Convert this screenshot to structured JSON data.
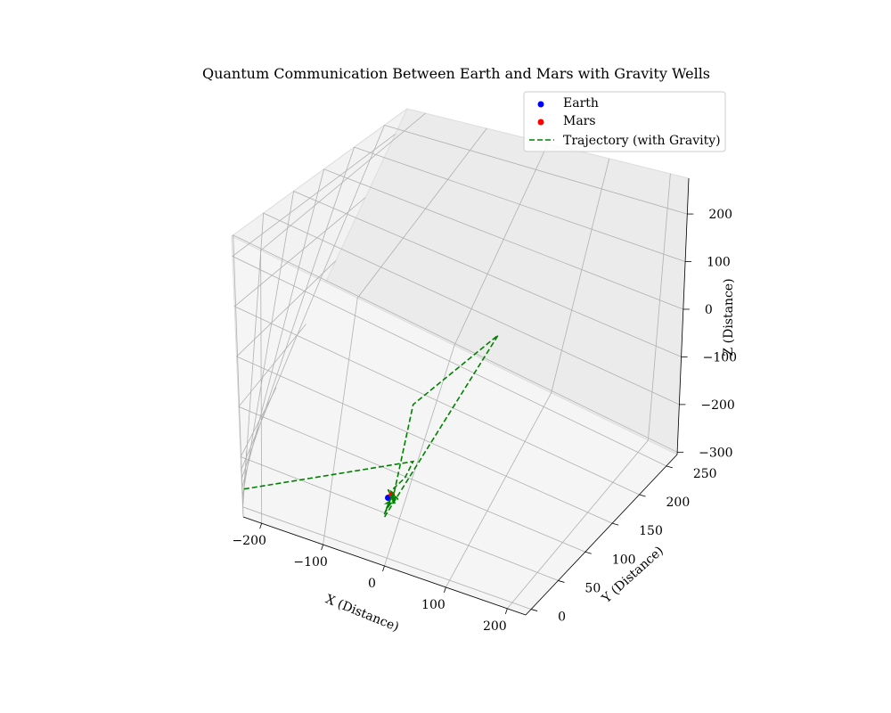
{
  "chart_data": {
    "type": "scatter3d",
    "title": "Quantum Communication Between Earth and Mars with Gravity Wells",
    "xlabel": "X (Distance)",
    "ylabel": "Y (Distance)",
    "zlabel": "Z (Distance)",
    "xlim": [
      -230,
      230
    ],
    "ylim": [
      -10,
      270
    ],
    "zlim": [
      -305,
      275
    ],
    "xticks": [
      "−200",
      "−100",
      "0",
      "100",
      "200"
    ],
    "xtick_values": [
      -200,
      -100,
      0,
      100,
      200
    ],
    "yticks": [
      "0",
      "50",
      "100",
      "150",
      "200",
      "250"
    ],
    "ytick_values": [
      0,
      50,
      100,
      150,
      200,
      250
    ],
    "zticks": [
      "200",
      "100",
      "0",
      "−100",
      "−200",
      "−300"
    ],
    "ztick_values": [
      200,
      100,
      0,
      -100,
      -200,
      -300
    ],
    "grid": true,
    "legend_position": "top-right",
    "series": [
      {
        "name": "Earth",
        "kind": "scatter",
        "color": "#0000ff",
        "points": [
          [
            0,
            0,
            0
          ]
        ]
      },
      {
        "name": "Mars",
        "kind": "scatter",
        "color": "#ff0000",
        "points": [
          [
            2,
            6,
            -12
          ]
        ]
      },
      {
        "name": "Trajectory (with Gravity)",
        "kind": "line",
        "style": "dashed",
        "color": "#008000",
        "points": [
          [
            -230,
            0,
            -120
          ],
          [
            15,
            35,
            20
          ],
          [
            5,
            35,
            -60
          ],
          [
            -5,
            15,
            -40
          ],
          [
            10,
            10,
            -50
          ],
          [
            -8,
            12,
            -20
          ],
          [
            6,
            8,
            -60
          ],
          [
            -5,
            4,
            -50
          ],
          [
            8,
            10,
            -35
          ],
          [
            -4,
            2,
            -70
          ],
          [
            3,
            8,
            -15
          ],
          [
            -6,
            0,
            -90
          ],
          [
            4,
            6,
            -30
          ],
          [
            2,
            40,
            250
          ],
          [
            35,
            260,
            -210
          ],
          [
            -5,
            0,
            -100
          ]
        ]
      }
    ]
  }
}
